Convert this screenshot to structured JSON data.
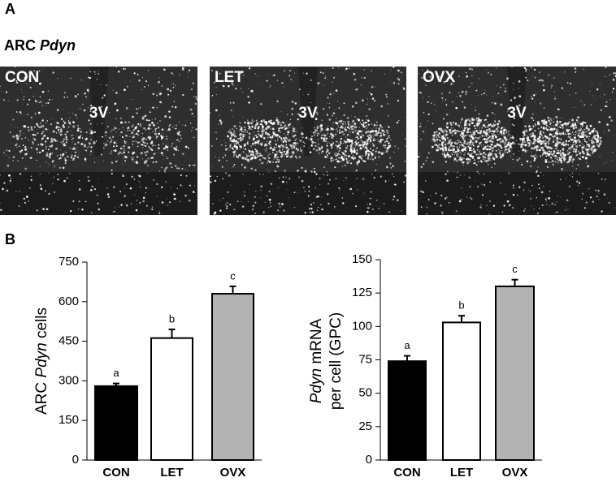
{
  "panel_labels": [
    "A",
    "B"
  ],
  "figure_title": [
    "ARC ",
    "Pdyn"
  ],
  "images": [
    {
      "label": "CON",
      "marker": "3V"
    },
    {
      "label": "LET",
      "marker": "3V"
    },
    {
      "label": "OVX",
      "marker": "3V"
    }
  ],
  "chart_data": [
    {
      "type": "bar",
      "y_label": [
        "ARC ",
        "Pdyn",
        " cells"
      ],
      "categories": [
        "CON",
        "LET",
        "OVX"
      ],
      "values": [
        280,
        462,
        630
      ],
      "errors": [
        10,
        33,
        28
      ],
      "colors": [
        "#000000",
        "#ffffff",
        "#b3b3b3"
      ],
      "annotations": [
        "a",
        "b",
        "c"
      ],
      "ylim": [
        0,
        750
      ],
      "yticks": [
        0,
        150,
        300,
        450,
        600,
        750
      ]
    },
    {
      "type": "bar",
      "y_label": [
        "Pdyn",
        " mRNA",
        "per cell (GPC)"
      ],
      "categories": [
        "CON",
        "LET",
        "OVX"
      ],
      "values": [
        74,
        103,
        130
      ],
      "errors": [
        4,
        5,
        5
      ],
      "colors": [
        "#000000",
        "#ffffff",
        "#b3b3b3"
      ],
      "annotations": [
        "a",
        "b",
        "c"
      ],
      "ylim": [
        0,
        150
      ],
      "yticks": [
        0,
        25,
        50,
        75,
        100,
        125,
        150
      ]
    }
  ]
}
